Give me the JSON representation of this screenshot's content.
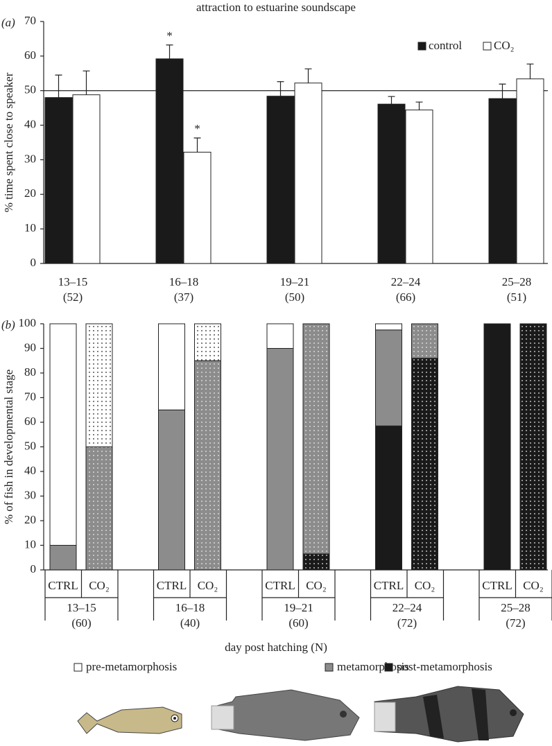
{
  "chart_data": [
    {
      "type": "bar",
      "panel": "(a)",
      "title": "attraction to estuarine soundscape",
      "ylabel": "% time spent close to speaker",
      "categories": [
        "13–15",
        "16–18",
        "19–21",
        "22–24",
        "25–28"
      ],
      "sample_sizes": [
        "(52)",
        "(37)",
        "(50)",
        "(66)",
        "(51)"
      ],
      "series": [
        {
          "name": "control",
          "color": "#1a1a1a",
          "values": [
            48,
            59.2,
            48.4,
            46.1,
            47.7
          ],
          "errors": [
            6.5,
            4,
            4.2,
            2.2,
            4.2
          ]
        },
        {
          "name": "CO₂",
          "color": "#ffffff",
          "values": [
            48.8,
            32.2,
            52.2,
            44.4,
            53.4
          ],
          "errors": [
            6.9,
            4.1,
            4.1,
            2.3,
            4.3
          ]
        }
      ],
      "reference_line": 50,
      "annotations": [
        {
          "text": "*",
          "category": 1,
          "series": 0
        },
        {
          "text": "*",
          "category": 1,
          "series": 1
        }
      ],
      "ylim": [
        0,
        70
      ],
      "yticks": [
        0,
        10,
        20,
        30,
        40,
        50,
        60,
        70
      ],
      "legend": "upper right"
    },
    {
      "type": "stacked_bar",
      "panel": "(b)",
      "ylabel": "% of fish in developmental stage",
      "xlabel": "day post hatching (N)",
      "groups": [
        "13–15",
        "16–18",
        "19–21",
        "22–24",
        "25–28"
      ],
      "sample_sizes": [
        "(60)",
        "(40)",
        "(60)",
        "(72)",
        "(72)"
      ],
      "bar_labels": [
        "CTRL",
        "CO₂",
        "CTRL",
        "CO₂",
        "CTRL",
        "CO₂",
        "CTRL",
        "CO₂",
        "CTRL",
        "CO₂"
      ],
      "series": [
        {
          "name": "pre-metamorphosis",
          "color": "#ffffff",
          "values": [
            90,
            50,
            35,
            15,
            10,
            0,
            2.5,
            0,
            0,
            0
          ]
        },
        {
          "name": "metamorphosis",
          "color": "#8c8c8c",
          "values": [
            10,
            50,
            65,
            85,
            90,
            93.5,
            39,
            14,
            0,
            0
          ]
        },
        {
          "name": "post-metamorphosis",
          "color": "#1a1a1a",
          "values": [
            0,
            0,
            0,
            0,
            0,
            6.5,
            58.5,
            86,
            100,
            100
          ]
        }
      ],
      "ylim": [
        0,
        100
      ],
      "yticks": [
        0,
        10,
        20,
        30,
        40,
        50,
        60,
        70,
        80,
        90,
        100
      ],
      "legend": "bottom"
    }
  ]
}
